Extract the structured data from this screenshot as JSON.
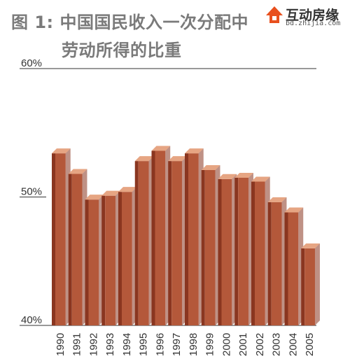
{
  "title": {
    "line1": "图 1: 中国国民收入一次分配中",
    "line2": "劳动所得的比重"
  },
  "logo": {
    "name": "互动房缘",
    "domain": "bd.zhijia.com",
    "icon": "house-logo-icon"
  },
  "colors": {
    "bar_front": "#b4583a",
    "bar_side": "#8a3620",
    "bar_top": "#e6a583",
    "axis": "#333333",
    "title": "#7a7a7a"
  },
  "chart_data": {
    "type": "bar",
    "categories": [
      "1990",
      "1991",
      "1992",
      "1993",
      "1994",
      "1995",
      "1996",
      "1997",
      "1998",
      "1999",
      "2000",
      "2001",
      "2002",
      "2003",
      "2004",
      "2005"
    ],
    "values": [
      53.4,
      51.8,
      49.8,
      50.1,
      50.4,
      52.8,
      53.6,
      52.8,
      53.4,
      52.1,
      51.4,
      51.5,
      51.2,
      49.6,
      48.8,
      46.0
    ],
    "ylim": [
      40,
      60
    ],
    "yticks": [
      "60%",
      "50%",
      "40%"
    ],
    "ytick_values": [
      60,
      50,
      40
    ],
    "title": "图 1: 中国国民收入一次分配中劳动所得的比重",
    "xlabel": "",
    "ylabel": "",
    "grid": false,
    "legend": "none"
  }
}
